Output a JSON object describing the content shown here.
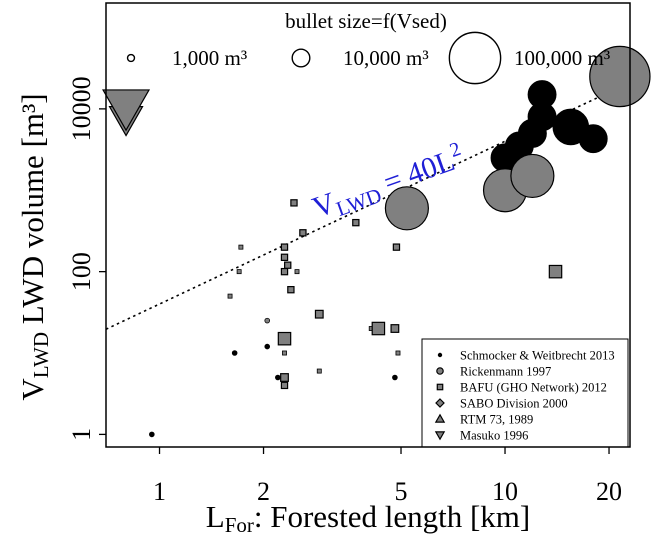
{
  "chart_data": {
    "type": "scatter",
    "x_scale": "log",
    "y_scale": "log",
    "xlim": [
      0.7,
      23
    ],
    "ylim": [
      0.7,
      200000
    ],
    "x_ticks": [
      {
        "value": 1,
        "label": "1"
      },
      {
        "value": 2,
        "label": "2"
      },
      {
        "value": 5,
        "label": "5"
      },
      {
        "value": 10,
        "label": "10"
      },
      {
        "value": 20,
        "label": "20"
      }
    ],
    "y_ticks": [
      {
        "value": 1,
        "label": "1"
      },
      {
        "value": 100,
        "label": "100"
      },
      {
        "value": 10000,
        "label": "10000"
      }
    ],
    "xlabel": {
      "main": "L",
      "sub": "For",
      "rest": ": Forested length [km]"
    },
    "ylabel": {
      "main": "V",
      "sub": "LWD",
      "rest": " LWD volume [m³]"
    },
    "size_legend": {
      "title": "bullet size=f(Vsed)",
      "items": [
        {
          "label": "1,000 m³",
          "vsed": 1000
        },
        {
          "label": "10,000 m³",
          "vsed": 10000
        },
        {
          "label": "100,000 m³",
          "vsed": 100000
        }
      ]
    },
    "fit_line": {
      "label_main": "V",
      "label_sub": "LWD",
      "label_mid": " = 40L",
      "label_sup": "2",
      "coefficient": 40,
      "exponent": 2,
      "color": "#1f1fd6",
      "style": "dotted"
    },
    "series": [
      {
        "name": "Schmocker & Weitbrecht 2013",
        "marker": "circle",
        "fill": "#000000",
        "points": [
          [
            0.95,
            1,
            1000
          ],
          [
            1.65,
            10,
            1000
          ],
          [
            2.05,
            12,
            1000
          ],
          [
            2.2,
            5,
            1000
          ],
          [
            4.8,
            5,
            1000
          ],
          [
            10,
            2500,
            60000
          ],
          [
            11,
            3500,
            60000
          ],
          [
            12,
            5000,
            60000
          ],
          [
            12.8,
            8000,
            60000
          ],
          [
            12.8,
            15000,
            60000
          ],
          [
            15.5,
            6000,
            100000
          ],
          [
            18,
            4300,
            60000
          ]
        ]
      },
      {
        "name": "Rickenmann 1997",
        "marker": "circle",
        "fill": "#808080",
        "points": [
          [
            2.05,
            25,
            1000
          ],
          [
            5.2,
            600,
            150000
          ],
          [
            10,
            1000,
            150000
          ],
          [
            12,
            1500,
            150000
          ],
          [
            21.5,
            25000,
            300000
          ]
        ]
      },
      {
        "name": "BAFU (GHO Network) 2012",
        "marker": "square",
        "fill": "#808080",
        "points": [
          [
            1.6,
            50,
            1000
          ],
          [
            1.7,
            100,
            1000
          ],
          [
            1.72,
            200,
            1000
          ],
          [
            2.3,
            15,
            15000
          ],
          [
            2.3,
            10,
            1000
          ],
          [
            2.3,
            5,
            5000
          ],
          [
            2.3,
            4,
            3000
          ],
          [
            2.3,
            200,
            3000
          ],
          [
            2.3,
            150,
            3000
          ],
          [
            2.3,
            100,
            3000
          ],
          [
            2.35,
            120,
            3000
          ],
          [
            2.4,
            60,
            3000
          ],
          [
            2.45,
            700,
            3000
          ],
          [
            2.5,
            100,
            1000
          ],
          [
            2.6,
            300,
            3000
          ],
          [
            2.9,
            30,
            5000
          ],
          [
            2.9,
            6,
            1000
          ],
          [
            3.7,
            400,
            3000
          ],
          [
            4.1,
            20,
            1000
          ],
          [
            4.3,
            20,
            15000
          ],
          [
            4.8,
            20,
            5000
          ],
          [
            4.85,
            200,
            3000
          ],
          [
            4.9,
            10,
            1000
          ],
          [
            14,
            100,
            15000
          ]
        ]
      },
      {
        "name": "SABO Division 2000",
        "marker": "diamond",
        "fill": "#808080",
        "points": []
      },
      {
        "name": "RTM 73, 1989",
        "marker": "triangle-up",
        "fill": "#808080",
        "points": []
      },
      {
        "name": "Masuko 1996",
        "marker": "triangle-down",
        "fill": "#808080",
        "points": [
          [
            0.8,
            7500,
            50000
          ],
          [
            0.8,
            10500,
            100000
          ]
        ]
      }
    ]
  }
}
